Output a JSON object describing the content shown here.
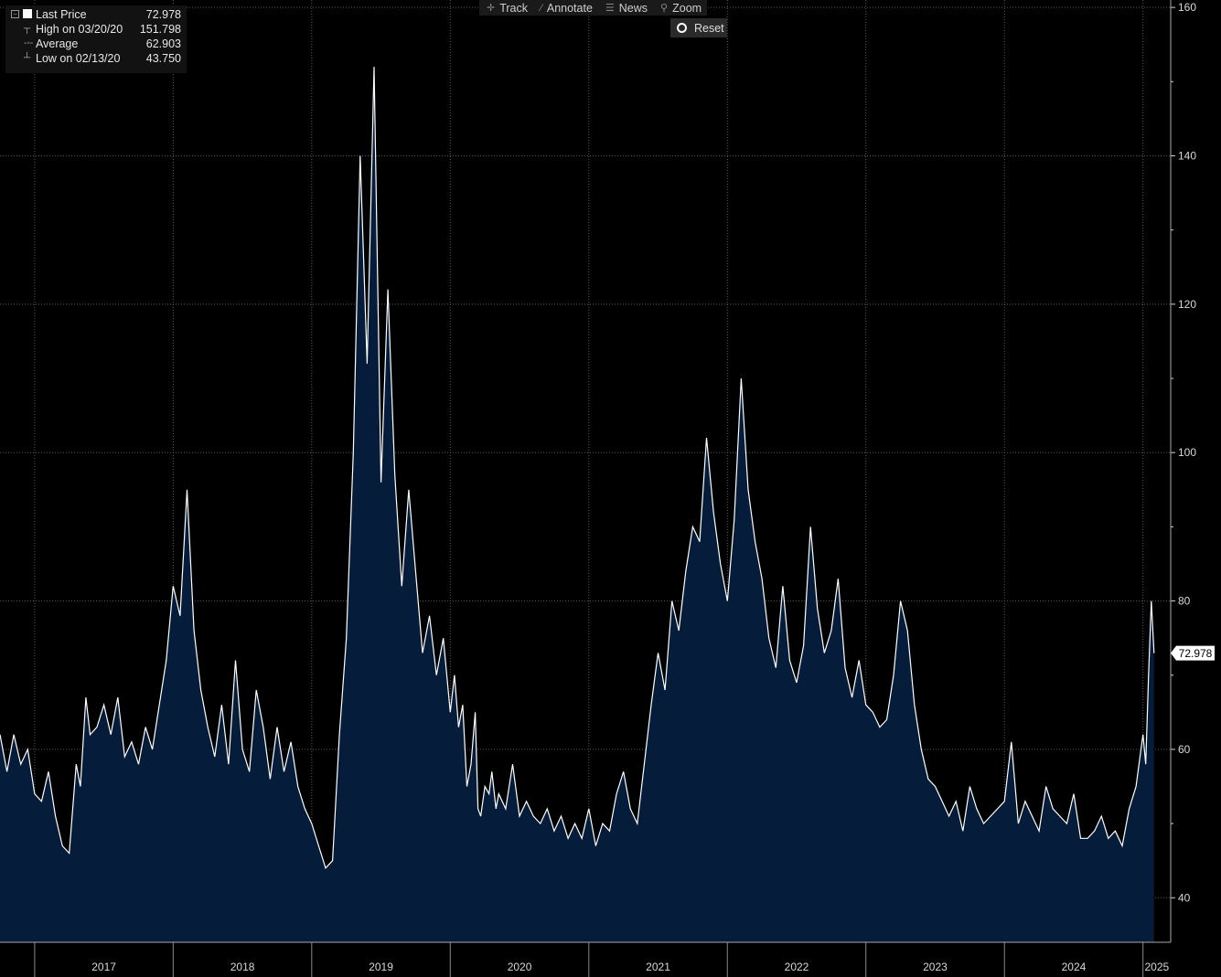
{
  "legend": {
    "rows": [
      {
        "label": "Last Price",
        "value": "72.978"
      },
      {
        "label": "High on 03/20/20",
        "value": "151.798"
      },
      {
        "label": "Average",
        "value": "62.903"
      },
      {
        "label": "Low on 02/13/20",
        "value": "43.750"
      }
    ]
  },
  "toolbar": {
    "track": "Track",
    "annotate": "Annotate",
    "news": "News",
    "zoom": "Zoom",
    "reset": "Reset"
  },
  "icons": {
    "track": "crosshair-icon",
    "annotate": "pencil-icon",
    "news": "news-icon",
    "zoom": "magnifier-icon",
    "reset": "radio-icon"
  },
  "colors": {
    "background": "#000000",
    "area_fill": "#051d3a",
    "line": "#ffffff",
    "grid": "#5a5a5a",
    "axis_text": "#d8d8d8"
  },
  "chart_data": {
    "type": "area",
    "xaxis_labels": [
      "2017",
      "2018",
      "2019",
      "2020",
      "2021",
      "2022",
      "2023",
      "2024",
      "2025"
    ],
    "yaxis_ticks": [
      40,
      60,
      80,
      100,
      120,
      140,
      160
    ],
    "ylim": [
      34,
      161
    ],
    "xlim": [
      2016.75,
      2025.2
    ],
    "grid": true,
    "last_value_label": "72.978",
    "series": [
      {
        "x": [
          2016.75,
          2016.8,
          2016.85,
          2016.9,
          2016.95,
          2017.0,
          2017.05,
          2017.1,
          2017.15,
          2017.2,
          2017.25,
          2017.3,
          2017.33,
          2017.37,
          2017.4,
          2017.45,
          2017.5,
          2017.55,
          2017.6,
          2017.65,
          2017.7,
          2017.75,
          2017.8,
          2017.85,
          2017.9,
          2017.95,
          2018.0,
          2018.05,
          2018.1,
          2018.15,
          2018.2,
          2018.25,
          2018.3,
          2018.35,
          2018.4,
          2018.45,
          2018.5,
          2018.55,
          2018.6,
          2018.65,
          2018.7,
          2018.75,
          2018.8,
          2018.85,
          2018.9,
          2018.95,
          2019.0,
          2019.05,
          2019.1,
          2019.15,
          2019.2,
          2019.25,
          2019.3,
          2019.35,
          2019.4,
          2019.45,
          2019.5,
          2019.55,
          2019.6,
          2019.65,
          2019.7,
          2019.75,
          2019.8,
          2019.85,
          2019.9,
          2019.95,
          2020.0,
          2020.03,
          2020.06,
          2020.09,
          2020.12,
          2020.15,
          2020.18,
          2020.2,
          2020.22,
          2020.25,
          2020.28,
          2020.3,
          2020.33,
          2020.35,
          2020.4,
          2020.45,
          2020.5,
          2020.55,
          2020.6,
          2020.65,
          2020.7,
          2020.75,
          2020.8,
          2020.85,
          2020.9,
          2020.95,
          2021.0,
          2021.05,
          2021.1,
          2021.15,
          2021.2,
          2021.25,
          2021.3,
          2021.35,
          2021.4,
          2021.45,
          2021.5,
          2021.55,
          2021.6,
          2021.65,
          2021.7,
          2021.75,
          2021.8,
          2021.85,
          2021.9,
          2021.95,
          2022.0,
          2022.05,
          2022.1,
          2022.15,
          2022.2,
          2022.25,
          2022.3,
          2022.35,
          2022.4,
          2022.45,
          2022.5,
          2022.55,
          2022.6,
          2022.65,
          2022.7,
          2022.75,
          2022.8,
          2022.85,
          2022.9,
          2022.95,
          2023.0,
          2023.05,
          2023.1,
          2023.15,
          2023.2,
          2023.25,
          2023.3,
          2023.35,
          2023.4,
          2023.45,
          2023.5,
          2023.55,
          2023.6,
          2023.65,
          2023.7,
          2023.75,
          2023.8,
          2023.85,
          2023.9,
          2023.95,
          2024.0,
          2024.05,
          2024.1,
          2024.15,
          2024.2,
          2024.25,
          2024.3,
          2024.35,
          2024.4,
          2024.45,
          2024.5,
          2024.55,
          2024.6,
          2024.65,
          2024.7,
          2024.75,
          2024.8,
          2024.85,
          2024.9,
          2024.95,
          2025.0,
          2025.02,
          2025.04,
          2025.06,
          2025.08
        ],
        "values": [
          62,
          57,
          62,
          58,
          60,
          54,
          53,
          57,
          51,
          47,
          46,
          58,
          55,
          67,
          62,
          63,
          66,
          62,
          67,
          59,
          61,
          58,
          63,
          60,
          66,
          72,
          82,
          78,
          95,
          76,
          68,
          63,
          59,
          66,
          58,
          72,
          60,
          57,
          68,
          63,
          56,
          63,
          57,
          61,
          55,
          52,
          50,
          47,
          44,
          45,
          62,
          75,
          100,
          140,
          112,
          152,
          96,
          122,
          97,
          82,
          95,
          84,
          73,
          78,
          70,
          75,
          65,
          70,
          63,
          66,
          55,
          58,
          65,
          52,
          51,
          55,
          54,
          57,
          52,
          54,
          52,
          58,
          51,
          53,
          51,
          50,
          52,
          49,
          51,
          48,
          50,
          48,
          52,
          47,
          50,
          49,
          54,
          57,
          52,
          50,
          58,
          66,
          73,
          68,
          80,
          76,
          84,
          90,
          88,
          102,
          92,
          85,
          80,
          91,
          110,
          95,
          88,
          83,
          75,
          71,
          82,
          72,
          69,
          74,
          90,
          79,
          73,
          76,
          83,
          71,
          67,
          72,
          66,
          65,
          63,
          64,
          70,
          80,
          76,
          66,
          60,
          56,
          55,
          53,
          51,
          53,
          49,
          55,
          52,
          50,
          51,
          52,
          53,
          61,
          50,
          53,
          51,
          49,
          55,
          52,
          51,
          50,
          54,
          48,
          48,
          49,
          51,
          48,
          49,
          47,
          52,
          55,
          62,
          58,
          70,
          80,
          72.978
        ]
      }
    ]
  }
}
